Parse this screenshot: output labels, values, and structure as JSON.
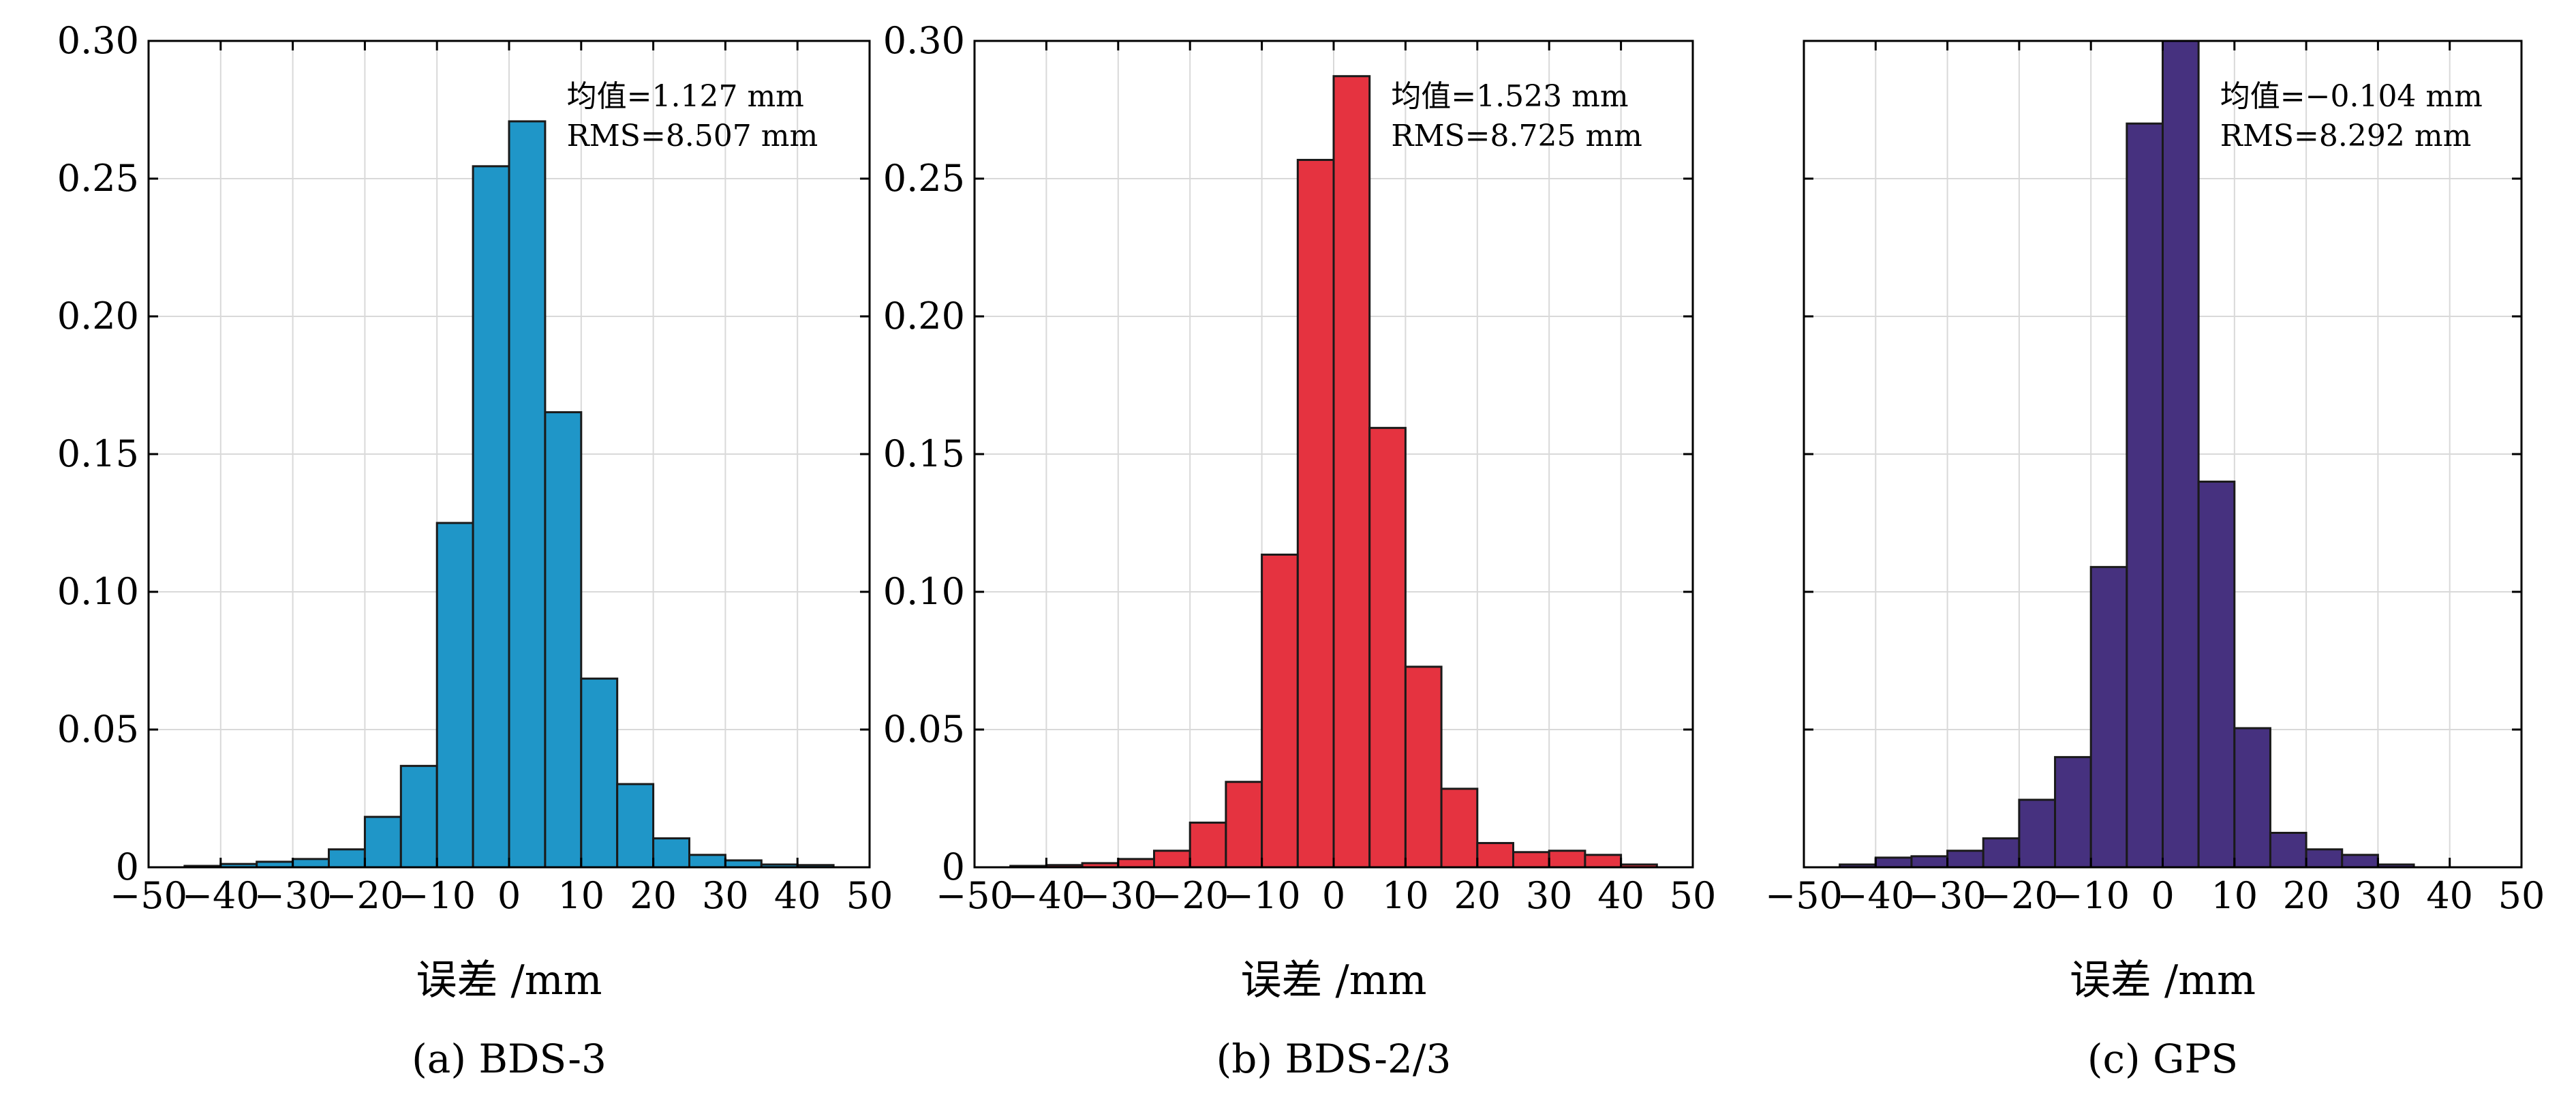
{
  "chart_data": [
    {
      "type": "bar",
      "subplot": "a",
      "caption": "(a) BDS-3",
      "xlabel": "误差 /mm",
      "ylabel": "",
      "xlim": [
        -50,
        50
      ],
      "ylim": [
        0,
        0.3
      ],
      "grid": true,
      "color": "#1f96c8",
      "bin_width": 5,
      "bins": [
        -45,
        -40,
        -35,
        -30,
        -25,
        -20,
        -15,
        -10,
        -5,
        0,
        5,
        10,
        15,
        20,
        25,
        30,
        35,
        40
      ],
      "values": [
        0.0005,
        0.0012,
        0.002,
        0.003,
        0.0065,
        0.0183,
        0.0368,
        0.125,
        0.2545,
        0.2708,
        0.1652,
        0.0685,
        0.0302,
        0.0105,
        0.0045,
        0.0025,
        0.001,
        0.0008
      ],
      "xticks": [
        "−50",
        "−40",
        "−30",
        "−20",
        "−10",
        "0",
        "10",
        "20",
        "30",
        "40",
        "50"
      ],
      "yticks": [
        "0",
        "0.05",
        "0.10",
        "0.15",
        "0.20",
        "0.25",
        "0.30"
      ],
      "annotations": [
        "均值=1.127 mm",
        "RMS=8.507 mm"
      ]
    },
    {
      "type": "bar",
      "subplot": "b",
      "caption": "(b) BDS-2/3",
      "xlabel": "误差 /mm",
      "ylabel": "",
      "xlim": [
        -50,
        50
      ],
      "ylim": [
        0,
        0.3
      ],
      "grid": true,
      "color": "#e53340",
      "bin_width": 5,
      "bins": [
        -45,
        -40,
        -35,
        -30,
        -25,
        -20,
        -15,
        -10,
        -5,
        0,
        5,
        10,
        15,
        20,
        25,
        30,
        35,
        40
      ],
      "values": [
        0.0005,
        0.0008,
        0.0015,
        0.003,
        0.006,
        0.0162,
        0.031,
        0.1135,
        0.2568,
        0.2872,
        0.1595,
        0.0728,
        0.0285,
        0.0088,
        0.0055,
        0.006,
        0.0045,
        0.001
      ],
      "xticks": [
        "−50",
        "−40",
        "−30",
        "−20",
        "−10",
        "0",
        "10",
        "20",
        "30",
        "40",
        "50"
      ],
      "yticks": [
        "0",
        "0.05",
        "0.10",
        "0.15",
        "0.20",
        "0.25",
        "0.30"
      ],
      "annotations": [
        "均值=1.523 mm",
        "RMS=8.725 mm"
      ]
    },
    {
      "type": "bar",
      "subplot": "c",
      "caption": "(c) GPS",
      "xlabel": "误差 /mm",
      "ylabel": "",
      "xlim": [
        -50,
        50
      ],
      "ylim": [
        0,
        0.3
      ],
      "grid": true,
      "color": "#46317f",
      "bin_width": 5,
      "bins": [
        -45,
        -40,
        -35,
        -30,
        -25,
        -20,
        -15,
        -10,
        -5,
        0,
        5,
        10,
        15,
        20,
        25,
        30
      ],
      "values": [
        0.001,
        0.0035,
        0.004,
        0.006,
        0.0105,
        0.0245,
        0.04,
        0.109,
        0.27,
        0.3,
        0.14,
        0.0505,
        0.0125,
        0.0065,
        0.0045,
        0.001
      ],
      "xticks": [
        "−50",
        "−40",
        "−30",
        "−20",
        "−10",
        "0",
        "10",
        "20",
        "30",
        "40",
        "50"
      ],
      "yticks": [],
      "annotations": [
        "均值=−0.104 mm",
        "RMS=8.292 mm"
      ]
    }
  ]
}
